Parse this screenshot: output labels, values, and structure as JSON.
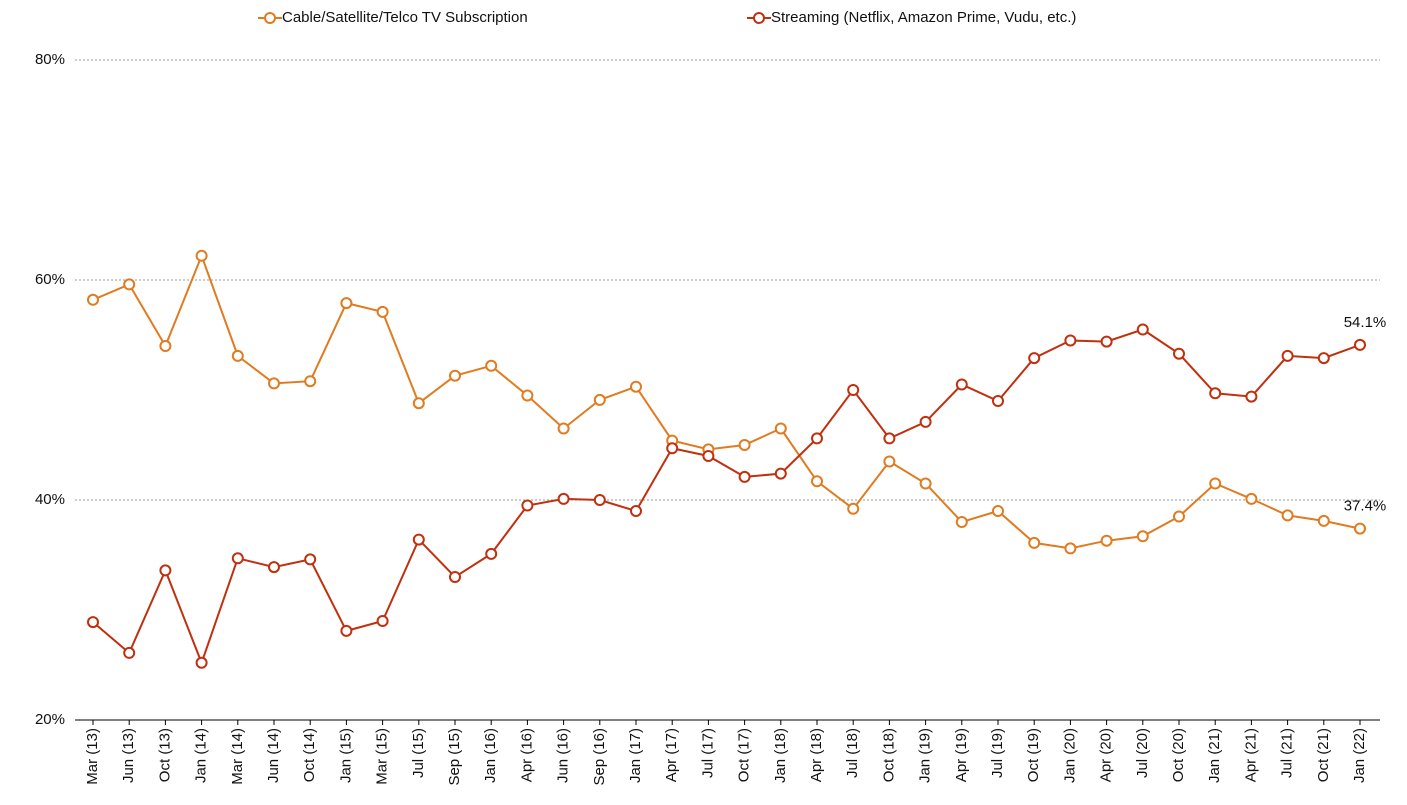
{
  "chart_data": {
    "type": "line",
    "categories": [
      "Mar (13)",
      "Jun (13)",
      "Oct (13)",
      "Jan (14)",
      "Mar (14)",
      "Jun (14)",
      "Oct (14)",
      "Jan (15)",
      "Mar (15)",
      "Jul (15)",
      "Sep (15)",
      "Jan (16)",
      "Apr (16)",
      "Jun (16)",
      "Sep (16)",
      "Jan (17)",
      "Apr (17)",
      "Jul (17)",
      "Oct (17)",
      "Jan (18)",
      "Apr (18)",
      "Jul (18)",
      "Oct (18)",
      "Jan (19)",
      "Apr (19)",
      "Jul (19)",
      "Oct (19)",
      "Jan (20)",
      "Apr (20)",
      "Jul (20)",
      "Oct (20)",
      "Jan (21)",
      "Apr (21)",
      "Jul (21)",
      "Oct (21)",
      "Jan (22)"
    ],
    "series": [
      {
        "name": "Cable/Satellite/Telco TV Subscription",
        "color": "#e07b20",
        "values": [
          58.2,
          59.6,
          54.0,
          62.2,
          53.1,
          50.6,
          50.8,
          57.9,
          57.1,
          48.8,
          51.3,
          52.2,
          49.5,
          46.5,
          49.1,
          50.3,
          45.4,
          44.6,
          45.0,
          46.5,
          41.7,
          39.2,
          43.5,
          41.5,
          38.0,
          39.0,
          36.1,
          35.6,
          36.3,
          36.7,
          38.5,
          41.5,
          40.1,
          38.6,
          38.1,
          37.4
        ],
        "value_labels": [
          null,
          null,
          null,
          null,
          null,
          null,
          null,
          null,
          null,
          null,
          null,
          null,
          null,
          null,
          null,
          null,
          null,
          null,
          null,
          null,
          null,
          null,
          null,
          null,
          null,
          null,
          null,
          null,
          null,
          null,
          null,
          null,
          null,
          null,
          null,
          "37.4%"
        ]
      },
      {
        "name": "Streaming (Netflix, Amazon Prime, Vudu, etc.)",
        "color": "#c0300f",
        "values": [
          28.9,
          26.1,
          33.6,
          25.2,
          34.7,
          33.9,
          34.6,
          28.1,
          29.0,
          36.4,
          33.0,
          35.1,
          39.5,
          40.1,
          40.0,
          39.0,
          44.7,
          44.0,
          42.1,
          42.4,
          45.6,
          50.0,
          45.6,
          47.1,
          50.5,
          49.0,
          52.9,
          54.5,
          54.4,
          55.5,
          53.3,
          49.7,
          49.4,
          53.1,
          52.9,
          54.1
        ],
        "value_labels": [
          null,
          null,
          null,
          null,
          null,
          null,
          null,
          null,
          null,
          null,
          null,
          null,
          null,
          null,
          null,
          null,
          null,
          null,
          null,
          null,
          null,
          null,
          null,
          null,
          null,
          null,
          null,
          null,
          null,
          null,
          null,
          null,
          null,
          null,
          null,
          "54.1%"
        ]
      }
    ],
    "ylim": [
      20,
      80
    ],
    "yticks": [
      {
        "value": 20,
        "label": "20%"
      },
      {
        "value": 40,
        "label": "40%"
      },
      {
        "value": 60,
        "label": "60%"
      },
      {
        "value": 80,
        "label": "80%"
      }
    ],
    "grid": true,
    "legend": "top"
  }
}
